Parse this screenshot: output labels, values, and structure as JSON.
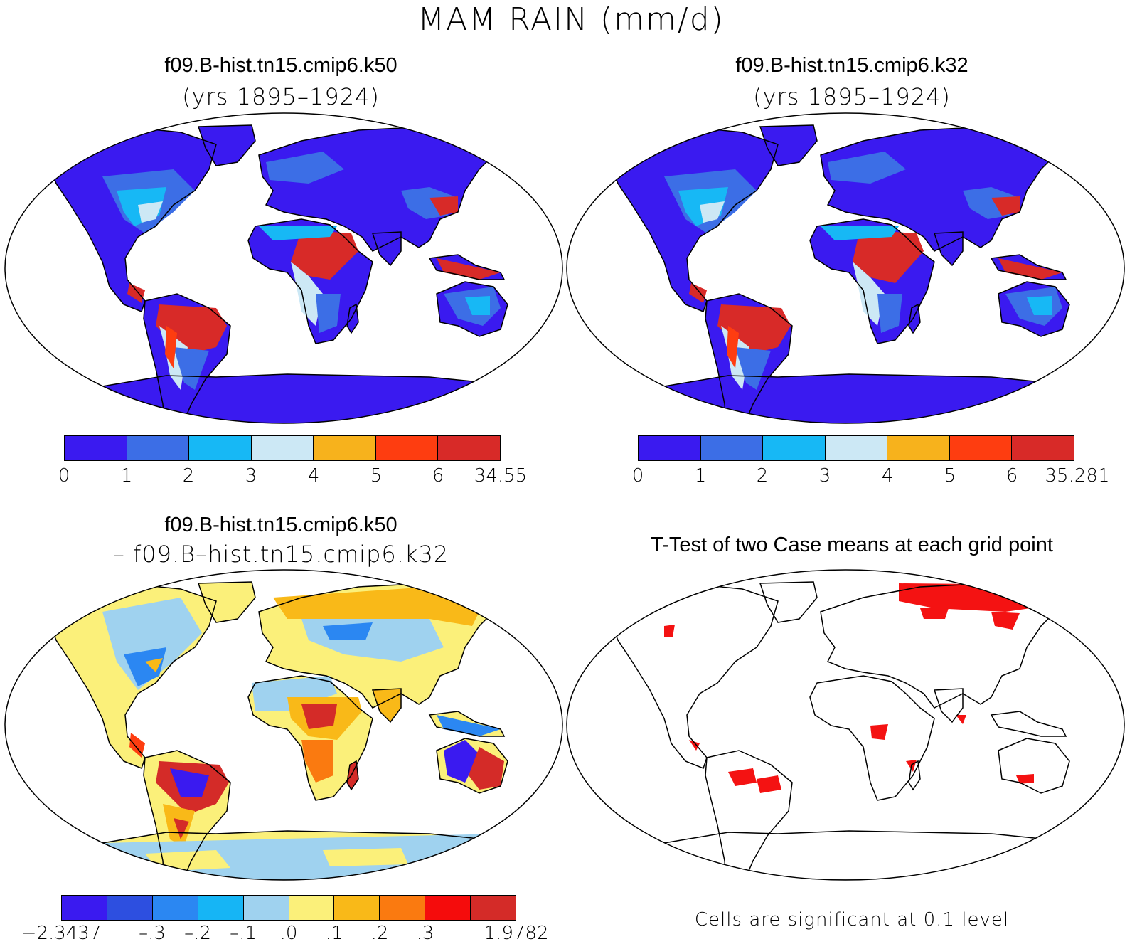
{
  "title": "MAM RAIN (mm/d)",
  "panels": {
    "top_left": {
      "title": "f09.B-hist.tn15.cmip6.k50",
      "subtitle": "(yrs 1895–1924)"
    },
    "top_right": {
      "title": "f09.B-hist.tn15.cmip6.k32",
      "subtitle": "(yrs 1895–1924)"
    },
    "bottom_left": {
      "title": "f09.B-hist.tn15.cmip6.k50",
      "subtitle": "– f09.B–hist.tn15.cmip6.k32"
    },
    "bottom_right": {
      "title": "T-Test of two Case means at each grid point",
      "note": "Cells are significant at 0.1 level"
    }
  },
  "colorbars": {
    "rain_left": {
      "colors": [
        "#3a1af0",
        "#3c6ee6",
        "#17b8f5",
        "#cce8f5",
        "#f7b21c",
        "#fe3d10",
        "#d82a28"
      ],
      "labels": [
        "0",
        "1",
        "2",
        "3",
        "4",
        "5",
        "6",
        "34.55"
      ]
    },
    "rain_right": {
      "colors": [
        "#3a1af0",
        "#3c6ee6",
        "#17b8f5",
        "#cce8f5",
        "#f7b21c",
        "#fe3d10",
        "#d82a28"
      ],
      "labels": [
        "0",
        "1",
        "2",
        "3",
        "4",
        "5",
        "6",
        "35.281"
      ]
    },
    "diff": {
      "colors": [
        "#3a1af0",
        "#2d4fe0",
        "#2b87f2",
        "#16b5f5",
        "#9fd2ef",
        "#fbf07a",
        "#f9b918",
        "#fa7a10",
        "#f50c0c",
        "#d42b28"
      ],
      "labels": [
        "−2.3437",
        "–.3",
        "–.2",
        "–.1",
        ".0",
        ".1",
        ".2",
        ".3",
        "1.9782"
      ]
    }
  },
  "significance_color": "#f41212"
}
